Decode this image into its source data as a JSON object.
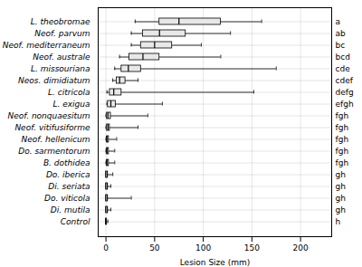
{
  "chart_data": {
    "type": "box",
    "orientation": "horizontal",
    "xlabel": "Lesion Size (mm)",
    "categories": [
      "L. theobromae",
      "Neof. parvum",
      "Neof. mediterraneum",
      "Neof. australe",
      "L. missouriana",
      "Neos. dimidiatum",
      "L. citricola",
      "L. exigua",
      "Neof. nonquaesitum",
      "Neof. vitifusiforme",
      "Neof. hellenicum",
      "Do. sarmentorum",
      "B. dothidea",
      "Do. iberica",
      "Di. seriata",
      "Do. viticola",
      "Di. mutila",
      "Control"
    ],
    "boxes": [
      {
        "whislo": 30,
        "q1": 55,
        "med": 75,
        "q3": 118,
        "whishi": 160
      },
      {
        "whislo": 26,
        "q1": 38,
        "med": 55,
        "q3": 82,
        "whishi": 128
      },
      {
        "whislo": 26,
        "q1": 36,
        "med": 50,
        "q3": 68,
        "whishi": 98
      },
      {
        "whislo": 14,
        "q1": 24,
        "med": 38,
        "q3": 55,
        "whishi": 118
      },
      {
        "whislo": 9,
        "q1": 16,
        "med": 23,
        "q3": 36,
        "whishi": 175
      },
      {
        "whislo": 7,
        "q1": 11,
        "med": 14,
        "q3": 20,
        "whishi": 33
      },
      {
        "whislo": 1,
        "q1": 4,
        "med": 8,
        "q3": 16,
        "whishi": 152
      },
      {
        "whislo": 1,
        "q1": 2,
        "med": 5,
        "q3": 10,
        "whishi": 58
      },
      {
        "whislo": 0,
        "q1": 1,
        "med": 2,
        "q3": 5,
        "whishi": 43
      },
      {
        "whislo": 0,
        "q1": 1,
        "med": 2,
        "q3": 4,
        "whishi": 33
      },
      {
        "whislo": 0,
        "q1": 1,
        "med": 1,
        "q3": 3,
        "whishi": 11
      },
      {
        "whislo": 0,
        "q1": 1,
        "med": 1,
        "q3": 3,
        "whishi": 9
      },
      {
        "whislo": 0,
        "q1": 1,
        "med": 1,
        "q3": 3,
        "whishi": 9
      },
      {
        "whislo": 0,
        "q1": 0,
        "med": 1,
        "q3": 2,
        "whishi": 7
      },
      {
        "whislo": 0,
        "q1": 0,
        "med": 1,
        "q3": 2,
        "whishi": 5
      },
      {
        "whislo": 0,
        "q1": 0,
        "med": 1,
        "q3": 2,
        "whishi": 26
      },
      {
        "whislo": 0,
        "q1": 0,
        "med": 1,
        "q3": 2,
        "whishi": 5
      },
      {
        "whislo": 0,
        "q1": 0,
        "med": 0,
        "q3": 1,
        "whishi": 2
      }
    ],
    "annotations": [
      "a",
      "ab",
      "bc",
      "bcd",
      "cde",
      "cdef",
      "defg",
      "efgh",
      "fgh",
      "fgh",
      "fgh",
      "fgh",
      "fgh",
      "gh",
      "gh",
      "gh",
      "gh",
      "h"
    ],
    "xlim": [
      -8,
      232
    ],
    "xticks": [
      0,
      50,
      100,
      150,
      200
    ],
    "grid": true,
    "color": "#e8e8e8"
  }
}
